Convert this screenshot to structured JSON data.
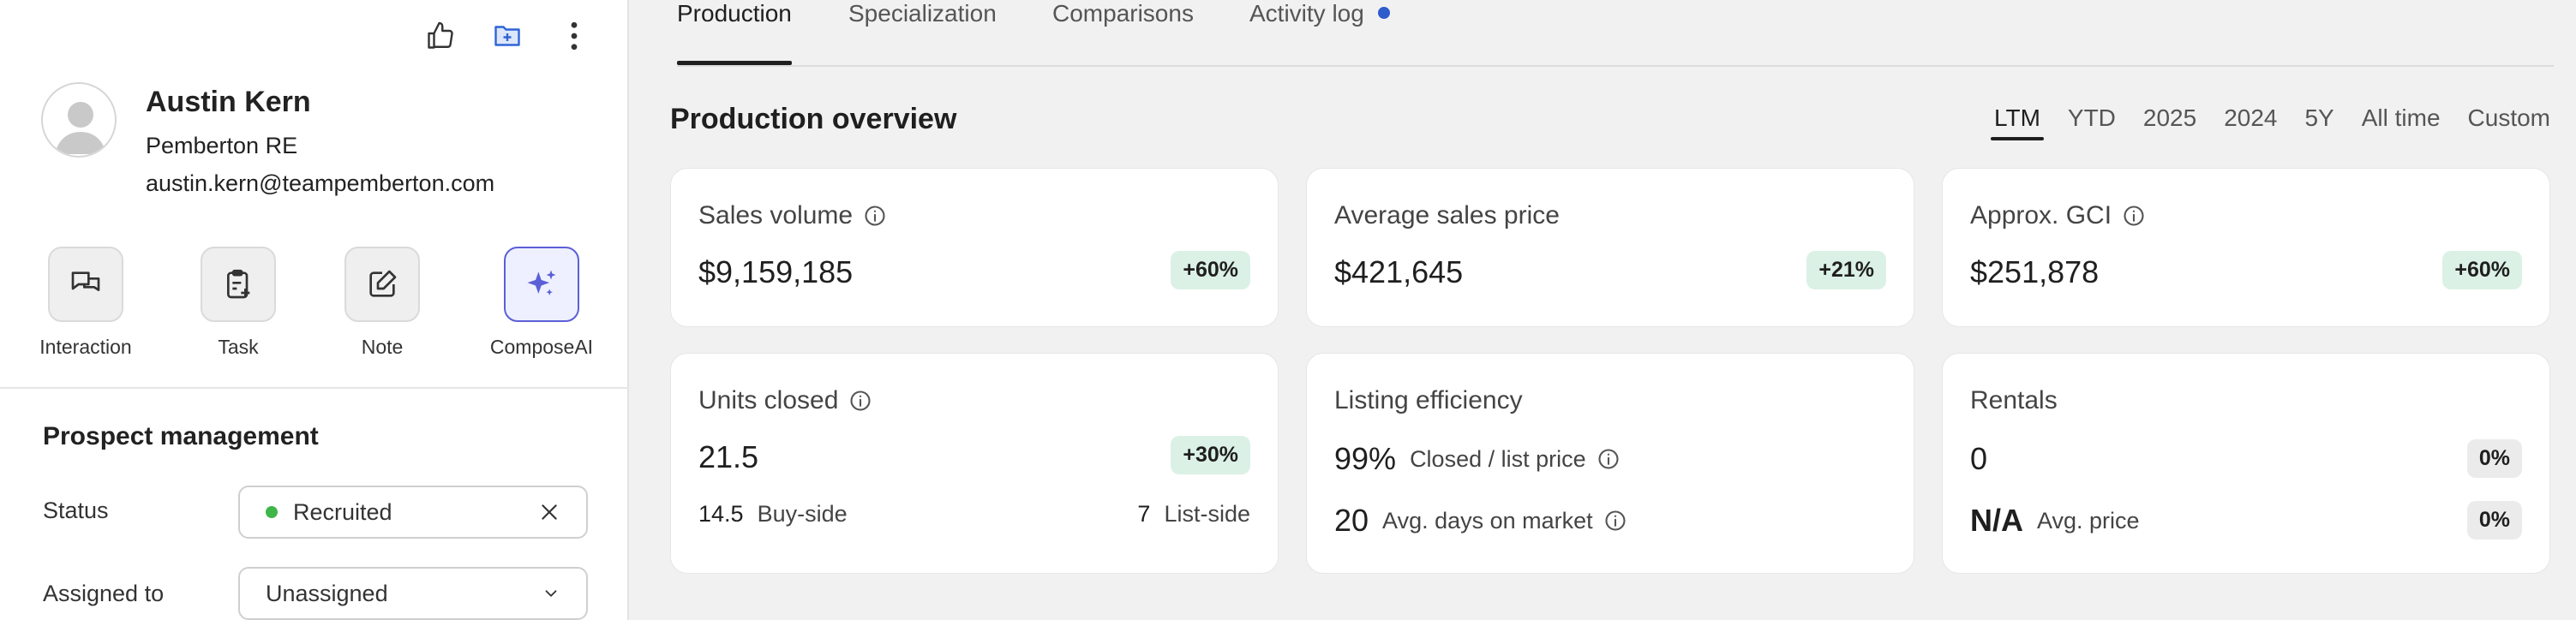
{
  "profile": {
    "name": "Austin Kern",
    "company": "Pemberton RE",
    "email": "austin.kern@teampemberton.com"
  },
  "top_icons": [
    "thumbs-up-icon",
    "folder-add-icon",
    "more-vertical-icon"
  ],
  "actions": {
    "interaction": "Interaction",
    "task": "Task",
    "note": "Note",
    "compose": "ComposeAI"
  },
  "prospect": {
    "title": "Prospect management",
    "status_label": "Status",
    "status_value": "Recruited",
    "assigned_label": "Assigned to",
    "assigned_value": "Unassigned"
  },
  "tabs": {
    "production": "Production",
    "specialization": "Specialization",
    "comparisons": "Comparisons",
    "activity": "Activity log"
  },
  "overview": {
    "title": "Production overview",
    "ranges": {
      "ltm": "LTM",
      "ytd": "YTD",
      "y2025": "2025",
      "y2024": "2024",
      "y5": "5Y",
      "all": "All time",
      "custom": "Custom"
    },
    "selected_range": "LTM"
  },
  "cards": {
    "sales_volume": {
      "title": "Sales volume",
      "value": "$9,159,185",
      "badge": "+60%"
    },
    "avg_price": {
      "title": "Average sales price",
      "value": "$421,645",
      "badge": "+21%"
    },
    "gci": {
      "title": "Approx. GCI",
      "value": "$251,878",
      "badge": "+60%"
    },
    "units": {
      "title": "Units closed",
      "value": "21.5",
      "badge": "+30%",
      "buy_value": "14.5",
      "buy_label": "Buy-side",
      "list_value": "7",
      "list_label": "List-side"
    },
    "efficiency": {
      "title": "Listing efficiency",
      "ratio_value": "99%",
      "ratio_label": "Closed / list price",
      "days_value": "20",
      "days_label": "Avg. days on market"
    },
    "rentals": {
      "title": "Rentals",
      "count_value": "0",
      "count_badge": "0%",
      "price_value": "N/A",
      "price_label": "Avg. price",
      "price_badge": "0%"
    }
  },
  "colors": {
    "accent": "#5b5fd6",
    "status_green": "#3fb54a",
    "activity_dot": "#2f5ccc",
    "badge_green": "#dcf1e6"
  }
}
